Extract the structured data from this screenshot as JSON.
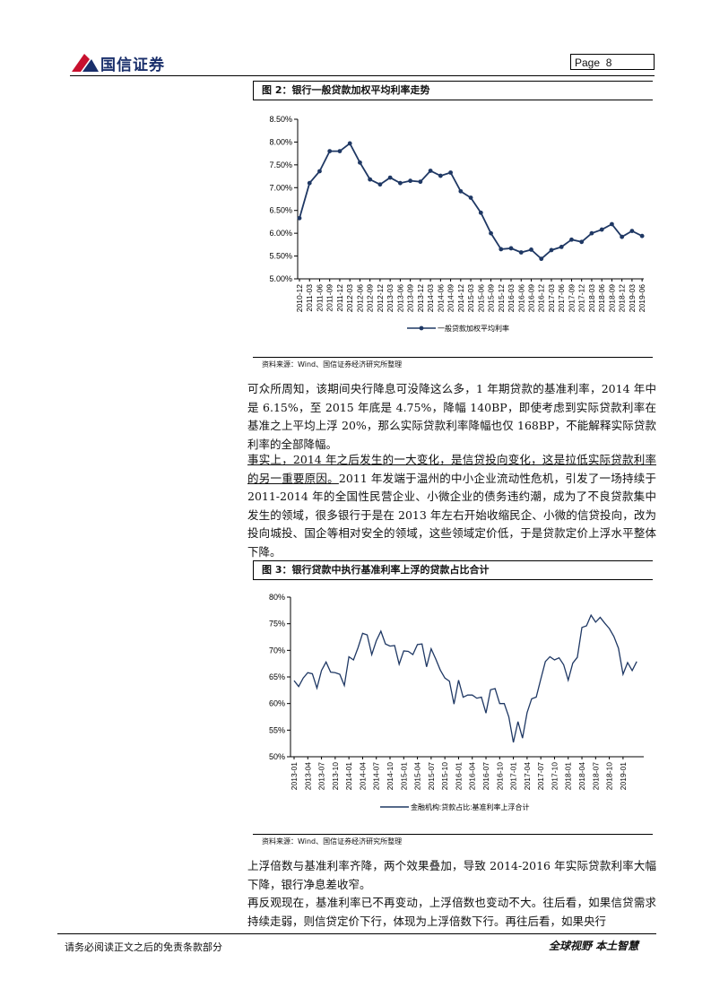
{
  "header": {
    "brand": "国信证券",
    "page_label": "Page",
    "page_number": "8"
  },
  "figure2": {
    "title": "图 2：银行一般贷款加权平均利率走势",
    "source": "资料来源：Wind、国信证券经济研究所整理"
  },
  "figure3": {
    "title": "图 3：银行贷款中执行基准利率上浮的贷款占比合计",
    "source": "资料来源：Wind、国信证券经济研究所整理"
  },
  "body": {
    "p1": "可众所周知，该期间央行降息可没降这么多，1 年期贷款的基准利率，2014 年中是 6.15%，至 2015 年底是 4.75%，降幅 140BP，即使考虑到实际贷款利率在基准之上平均上浮 20%，那么实际贷款利率降幅也仅 168BP，不能解释实际贷款利率的全部降幅。",
    "p2_underlined": "事实上，2014 年之后发生的一大变化，是信贷投向变化，这是拉低实际贷款利率的另一重要原因。",
    "p2_rest": "2011 年发端于温州的中小企业流动性危机，引发了一场持续于 2011-2014 年的全国性民营企业、小微企业的债务违约潮，成为了不良贷款集中发生的领域，很多银行于是在 2013 年左右开始收缩民企、小微的信贷投向，改为投向城投、国企等相对安全的领域，这些领域定价低，于是贷款定价上浮水平整体下降。",
    "p3": "上浮倍数与基准利率齐降，两个效果叠加，导致 2014-2016 年实际贷款利率大幅下降，银行净息差收窄。",
    "p4": "再反观现在，基准利率已不再变动，上浮倍数也变动不大。往后看，如果信贷需求持续走弱，则信贷定价下行，体现为上浮倍数下行。再往后看，如果央行"
  },
  "footer": {
    "disclaimer": "请务必阅读正文之后的免责条款部分",
    "slogan": "全球视野  本土智慧"
  },
  "chart_data": [
    {
      "type": "line",
      "title": "",
      "series": [
        {
          "name": "一般贷款加权平均利率",
          "color": "#1f3864",
          "values": [
            6.33,
            7.1,
            7.36,
            7.8,
            7.8,
            7.97,
            7.55,
            7.18,
            7.07,
            7.22,
            7.1,
            7.15,
            7.13,
            7.37,
            7.26,
            7.33,
            6.92,
            6.78,
            6.45,
            6.0,
            5.65,
            5.67,
            5.58,
            5.64,
            5.44,
            5.63,
            5.7,
            5.86,
            5.81,
            6.0,
            6.08,
            6.2,
            5.92,
            6.05,
            5.94
          ]
        }
      ],
      "x": [
        "2010-12",
        "2011-03",
        "2011-06",
        "2011-09",
        "2011-12",
        "2012-03",
        "2012-06",
        "2012-09",
        "2012-12",
        "2013-03",
        "2013-06",
        "2013-09",
        "2013-12",
        "2014-03",
        "2014-06",
        "2014-09",
        "2014-12",
        "2015-03",
        "2015-06",
        "2015-09",
        "2015-12",
        "2016-03",
        "2016-06",
        "2016-09",
        "2016-12",
        "2017-03",
        "2017-06",
        "2017-09",
        "2017-12",
        "2018-03",
        "2018-06",
        "2018-09",
        "2018-12",
        "2019-03",
        "2019-06"
      ],
      "ylim": [
        5.0,
        8.5
      ],
      "yticks": [
        "5.00%",
        "5.50%",
        "6.00%",
        "6.50%",
        "7.00%",
        "7.50%",
        "8.00%",
        "8.50%"
      ],
      "legend_position": "bottom",
      "grid": false
    },
    {
      "type": "line",
      "title": "",
      "series": [
        {
          "name": "金融机构:贷款占比:基准利率上浮合计",
          "color": "#1f3864",
          "values": [
            64.3,
            63.2,
            64.8,
            65.8,
            65.6,
            62.9,
            66.2,
            67.8,
            65.9,
            65.8,
            65.5,
            63.4,
            68.8,
            68.2,
            70.5,
            73.2,
            72.9,
            69.2,
            71.8,
            73.6,
            71.2,
            70.8,
            70.9,
            67.4,
            69.9,
            69.8,
            69.2,
            71.1,
            71.2,
            66.9,
            70.3,
            68.4,
            66.3,
            64.8,
            64.2,
            59.9,
            64.4,
            61.2,
            61.6,
            61.6,
            61.0,
            61.2,
            58.2,
            62.6,
            62.8,
            60.0,
            60.0,
            57.5,
            52.7,
            56.6,
            53.5,
            58.3,
            60.9,
            61.2,
            64.6,
            67.9,
            68.8,
            68.2,
            68.6,
            67.3,
            64.4,
            67.6,
            68.7,
            74.3,
            74.6,
            76.6,
            75.3,
            76.2,
            75.1,
            74.1,
            72.6,
            70.4,
            65.5,
            67.7,
            66.2,
            67.9
          ]
        }
      ],
      "x_ticks": [
        "2013-01",
        "2013-04",
        "2013-07",
        "2013-10",
        "2014-01",
        "2014-04",
        "2014-07",
        "2014-10",
        "2015-01",
        "2015-04",
        "2015-07",
        "2015-10",
        "2016-01",
        "2016-04",
        "2016-07",
        "2016-10",
        "2017-01",
        "2017-04",
        "2017-07",
        "2017-10",
        "2018-01",
        "2018-04",
        "2018-07",
        "2018-10",
        "2019-01"
      ],
      "ylim": [
        50,
        80
      ],
      "yticks": [
        "50%",
        "55%",
        "60%",
        "65%",
        "70%",
        "75%",
        "80%"
      ],
      "legend_position": "bottom",
      "grid": false
    }
  ]
}
